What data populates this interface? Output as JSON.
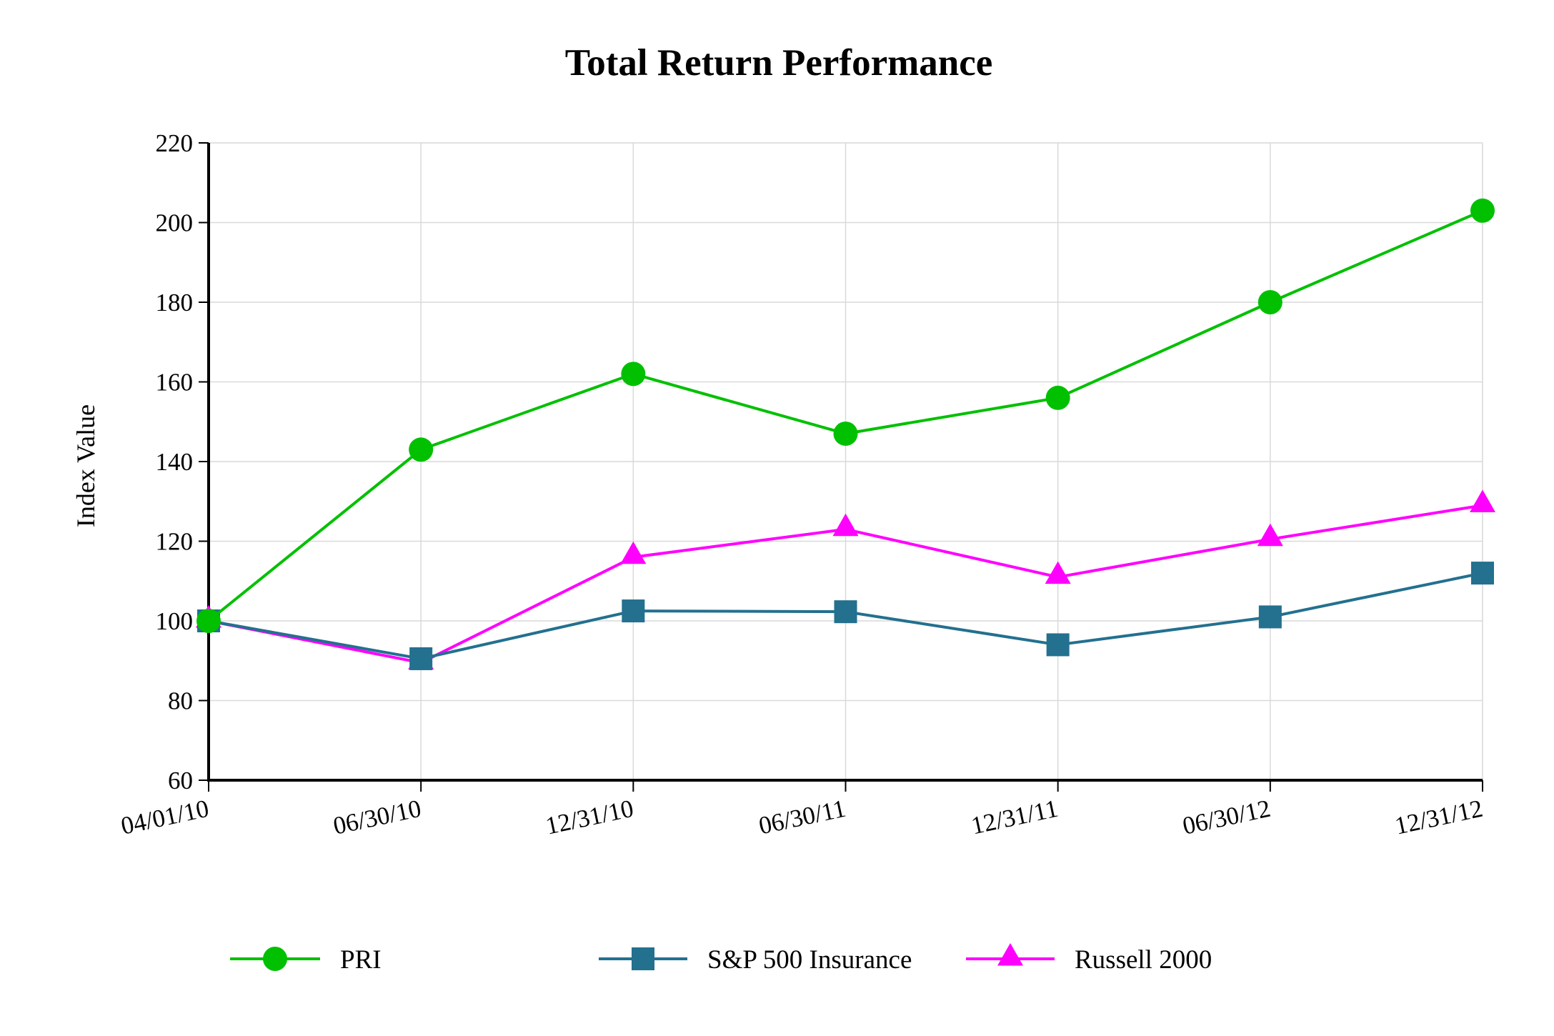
{
  "chart_data": {
    "type": "line",
    "title": "Total Return Performance",
    "xlabel": "",
    "ylabel": "Index Value",
    "categories": [
      "04/01/10",
      "06/30/10",
      "12/31/10",
      "06/30/11",
      "12/31/11",
      "06/30/12",
      "12/31/12"
    ],
    "ylim": [
      60,
      220
    ],
    "yticks": [
      60,
      80,
      100,
      120,
      140,
      160,
      180,
      200,
      220
    ],
    "grid": true,
    "legend_position": "bottom",
    "series": [
      {
        "name": "PRI",
        "marker": "circle",
        "color": "#00c000",
        "values": [
          100,
          143,
          162,
          147,
          156,
          180,
          203
        ]
      },
      {
        "name": "S&P 500 Insurance",
        "marker": "square",
        "color": "#23708f",
        "values": [
          100,
          90.5,
          102.5,
          102.3,
          94,
          101,
          112
        ]
      },
      {
        "name": "Russell 2000",
        "marker": "triangle",
        "color": "#ff00ff",
        "values": [
          100,
          89.5,
          116,
          123,
          111,
          120.5,
          129
        ]
      }
    ]
  }
}
